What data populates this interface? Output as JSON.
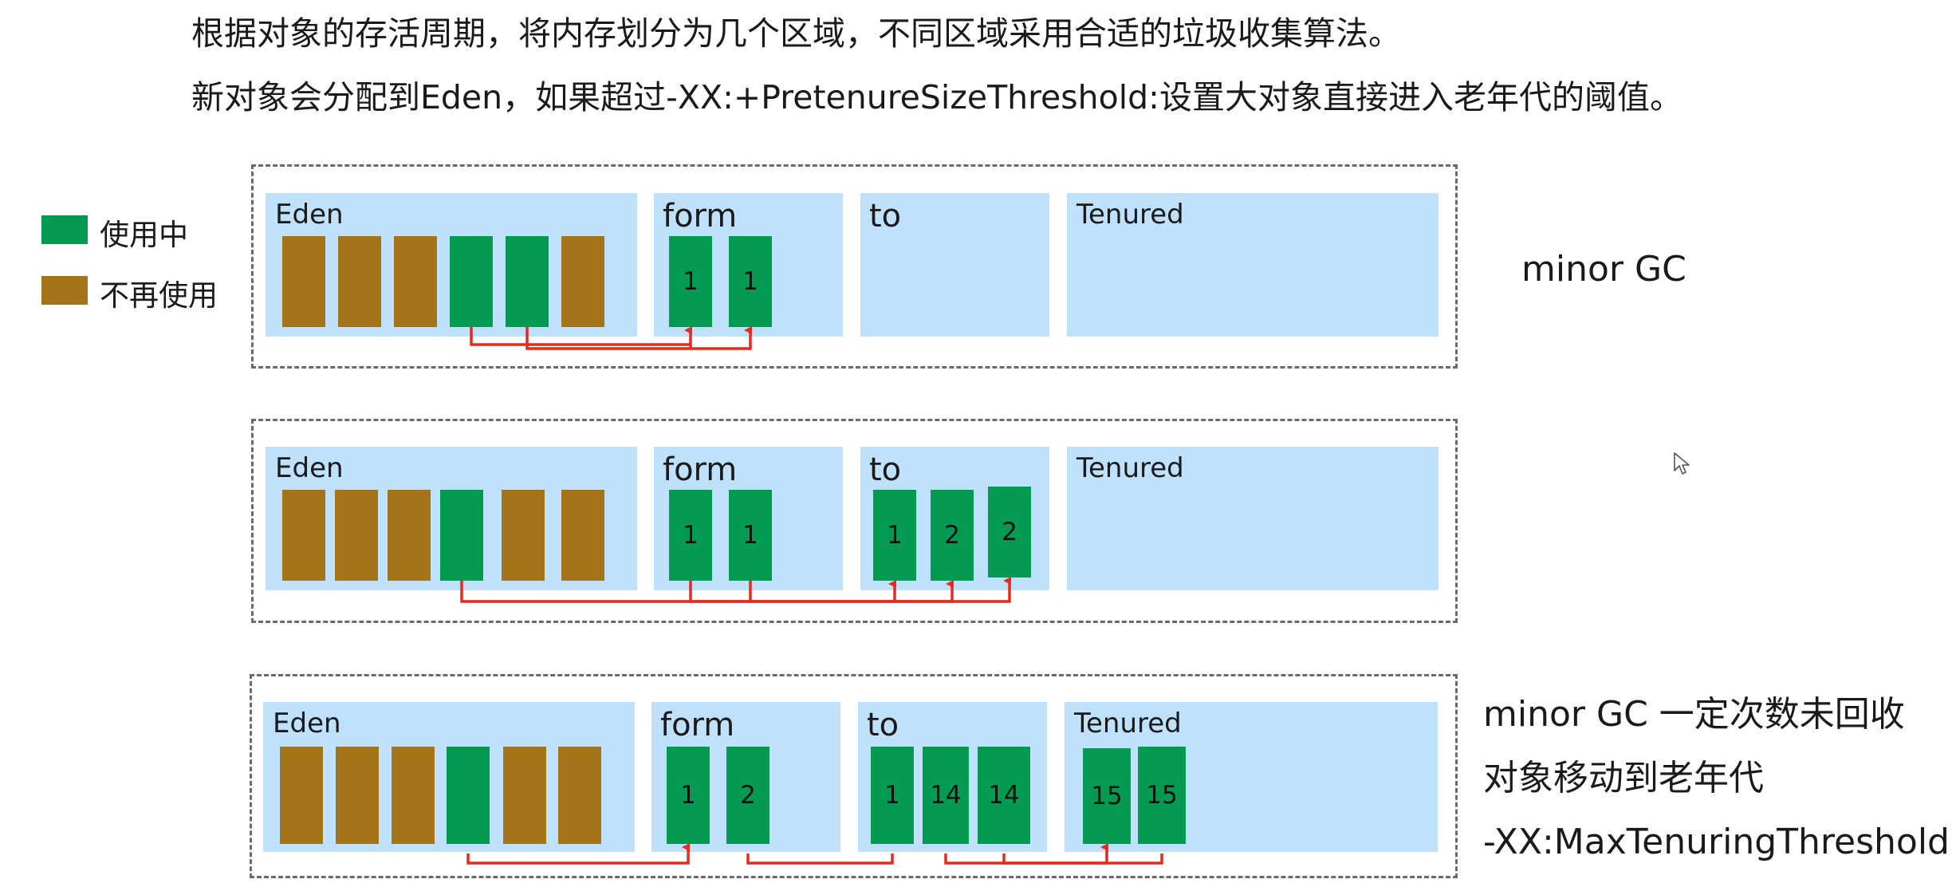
{
  "intro": {
    "line1": "根据对象的存活周期，将内存划分为几个区域，不同区域采用合适的垃圾收集算法。",
    "line2": "新对象会分配到Eden，如果超过-XX:+PretenureSizeThreshold:设置大对象直接进入老年代的阈值。"
  },
  "legend": {
    "live_label": "使用中",
    "dead_label": "不再使用",
    "live_color": "#049a52",
    "dead_color": "#a37418"
  },
  "regions": {
    "eden": "Eden",
    "from": "form",
    "to": "to",
    "tenured": "Tenured"
  },
  "stages": [
    {
      "eden": [
        "dead",
        "dead",
        "dead",
        "live",
        "live",
        "dead"
      ],
      "from": [
        "1",
        "1"
      ],
      "to": [],
      "tenured": [],
      "note": [
        "minor GC"
      ]
    },
    {
      "eden": [
        "dead",
        "dead",
        "dead",
        "live",
        "dead",
        "dead"
      ],
      "from": [
        "1",
        "1"
      ],
      "to": [
        "1",
        "2",
        "2"
      ],
      "tenured": [],
      "note": []
    },
    {
      "eden": [
        "dead",
        "dead",
        "dead",
        "live",
        "dead",
        "dead"
      ],
      "from": [
        "1",
        "2"
      ],
      "to": [
        "1",
        "14",
        "14"
      ],
      "tenured": [
        "15",
        "15"
      ],
      "note": [
        "minor GC 一定次数未回收",
        "对象移动到老年代",
        "-XX:MaxTenuringThreshold"
      ]
    }
  ],
  "colors": {
    "region_bg": "#bfe1fb",
    "arrow": "#e62a1e",
    "border": "#6b6b6b"
  }
}
